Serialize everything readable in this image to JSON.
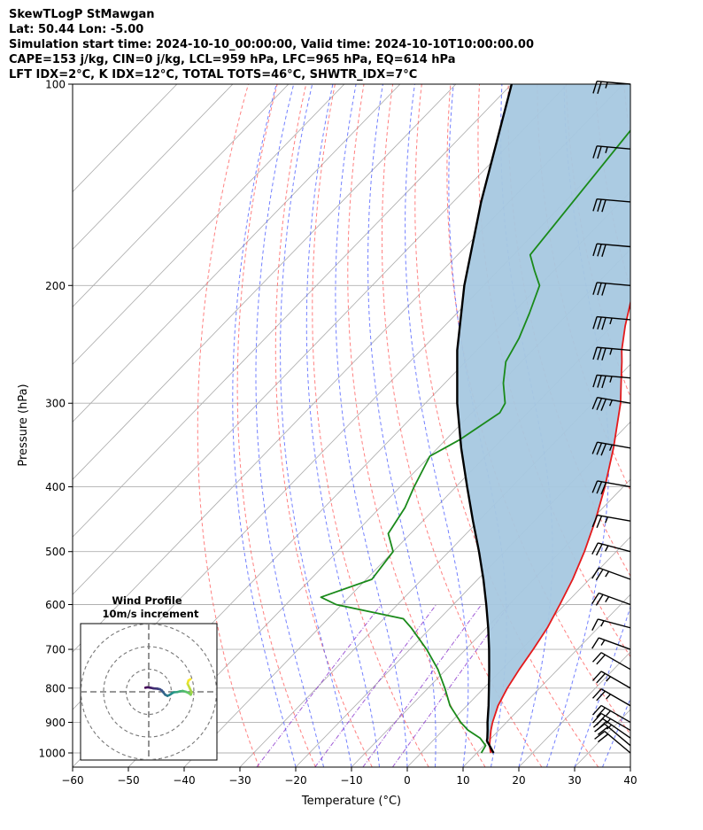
{
  "header": {
    "line1": "SkewTLogP StMawgan",
    "line2": "Lat: 50.44   Lon: -5.00",
    "line3": "Simulation start time: 2024-10-10_00:00:00, Valid time: 2024-10-10T10:00:00.00",
    "line4": "CAPE=153 j/kg, CIN=0 j/kg, LCL=959 hPa, LFC=965 hPa, EQ=614 hPa",
    "line5": "LFT IDX=2°C, K IDX=12°C, TOTAL TOTS=46°C, SHWTR_IDX=7°C"
  },
  "colors": {
    "temperature": "#e41a1c",
    "dewpoint": "#1a8a1a",
    "parcel": "#000000",
    "cape_fill": "#a6c8e0",
    "cin_fill": "#f4a6a8",
    "dry_adiabat": "#ff5555",
    "moist_adiabat": "#4455ff",
    "mixing_ratio": "#8833cc",
    "isotherm": "#aaaaaa",
    "wind_barb": "#000000"
  },
  "chart_data": {
    "type": "skewt",
    "xlabel": "Temperature (°C)",
    "ylabel": "Pressure (hPa)",
    "xlim": [
      -60,
      40
    ],
    "ylim": [
      1050,
      100
    ],
    "y_scale": "log",
    "grid": true,
    "x_ticks": [
      -60,
      -50,
      -40,
      -30,
      -20,
      -10,
      0,
      10,
      20,
      30,
      40
    ],
    "x_tick_labels": [
      "−60",
      "−50",
      "−40",
      "−30",
      "−20",
      "−10",
      "0",
      "10",
      "20",
      "30",
      "40"
    ],
    "y_ticks": [
      100,
      200,
      300,
      400,
      500,
      600,
      700,
      800,
      900,
      1000
    ],
    "y_tick_labels": [
      "100",
      "200",
      "300",
      "400",
      "500",
      "600",
      "700",
      "800",
      "900",
      "1000"
    ],
    "temperature": {
      "pressure": [
        1000,
        975,
        950,
        925,
        900,
        850,
        800,
        750,
        700,
        650,
        600,
        550,
        500,
        450,
        400,
        350,
        300,
        280,
        260,
        250,
        230,
        200,
        180,
        160,
        150,
        140,
        125,
        110,
        100
      ],
      "temp": [
        12.5,
        11.0,
        9.8,
        8.6,
        7.5,
        5.6,
        4.2,
        3.1,
        2.1,
        0.9,
        -0.9,
        -3.0,
        -5.7,
        -9.1,
        -13.3,
        -18.5,
        -25.0,
        -28.4,
        -32.0,
        -34.0,
        -37.6,
        -43.0,
        -47.2,
        -51.2,
        -53.0,
        -54.4,
        -56.4,
        -58.3,
        -59.5
      ]
    },
    "dewpoint": {
      "pressure": [
        1000,
        975,
        950,
        925,
        900,
        850,
        800,
        750,
        700,
        650,
        630,
        600,
        585,
        550,
        500,
        470,
        430,
        400,
        360,
        340,
        310,
        300,
        280,
        260,
        240,
        220,
        200,
        190,
        180,
        100
      ],
      "dewp": [
        10.8,
        10.3,
        8.0,
        4.5,
        1.8,
        -3.0,
        -7.0,
        -11.5,
        -17.0,
        -23.5,
        -26.5,
        -41.0,
        -45.0,
        -39.0,
        -40.0,
        -44.0,
        -45.5,
        -47.5,
        -50.0,
        -47.5,
        -45.0,
        -45.7,
        -49.5,
        -52.8,
        -54.5,
        -57.0,
        -60.0,
        -63.5,
        -67.0,
        -72.0
      ]
    },
    "parcel": {
      "pressure": [
        1000,
        975,
        959,
        950,
        925,
        900,
        850,
        800,
        750,
        700,
        650,
        600,
        550,
        500,
        450,
        400,
        350,
        300,
        250,
        200,
        150,
        100
      ],
      "temp": [
        13.0,
        11.0,
        9.7,
        9.3,
        8.0,
        6.6,
        3.9,
        0.9,
        -2.3,
        -5.8,
        -9.7,
        -14.1,
        -19.0,
        -24.6,
        -31.0,
        -38.0,
        -45.8,
        -54.3,
        -63.5,
        -73.5,
        -85.0,
        -100.0
      ]
    },
    "wind_barbs": {
      "pressure": [
        1000,
        975,
        950,
        925,
        900,
        850,
        800,
        750,
        700,
        650,
        600,
        550,
        500,
        450,
        400,
        350,
        300,
        275,
        250,
        225,
        200,
        175,
        150,
        125,
        100
      ],
      "speed_kt": [
        20,
        20,
        25,
        25,
        25,
        25,
        25,
        20,
        15,
        15,
        25,
        25,
        25,
        25,
        30,
        35,
        35,
        35,
        35,
        35,
        30,
        30,
        30,
        25,
        25
      ],
      "direction_deg": [
        310,
        310,
        305,
        300,
        300,
        300,
        300,
        300,
        290,
        285,
        290,
        290,
        285,
        280,
        280,
        280,
        280,
        275,
        275,
        275,
        275,
        275,
        275,
        275,
        275
      ]
    },
    "inset": {
      "title": "Wind Profile",
      "subtitle": "10m/s increment",
      "rings_ms": [
        10,
        20,
        30
      ],
      "hodograph_u": [
        -1.5,
        -0.6,
        0.8,
        2.2,
        3.8,
        5.0,
        5.8,
        6.5,
        7.3,
        8.3,
        9.2,
        10.2,
        11.2,
        12.6,
        13.8,
        15.0,
        16.5,
        17.8,
        18.6,
        19.0,
        18.2,
        17.2,
        17.6,
        18.5
      ],
      "hodograph_v": [
        1.8,
        2.0,
        1.8,
        1.5,
        1.4,
        1.1,
        0.6,
        -0.3,
        -1.3,
        -1.8,
        -1.4,
        -0.7,
        -0.2,
        -0.1,
        0.2,
        0.4,
        0.0,
        -0.6,
        -1.3,
        -0.3,
        1.5,
        3.6,
        5.0,
        5.6
      ]
    }
  }
}
